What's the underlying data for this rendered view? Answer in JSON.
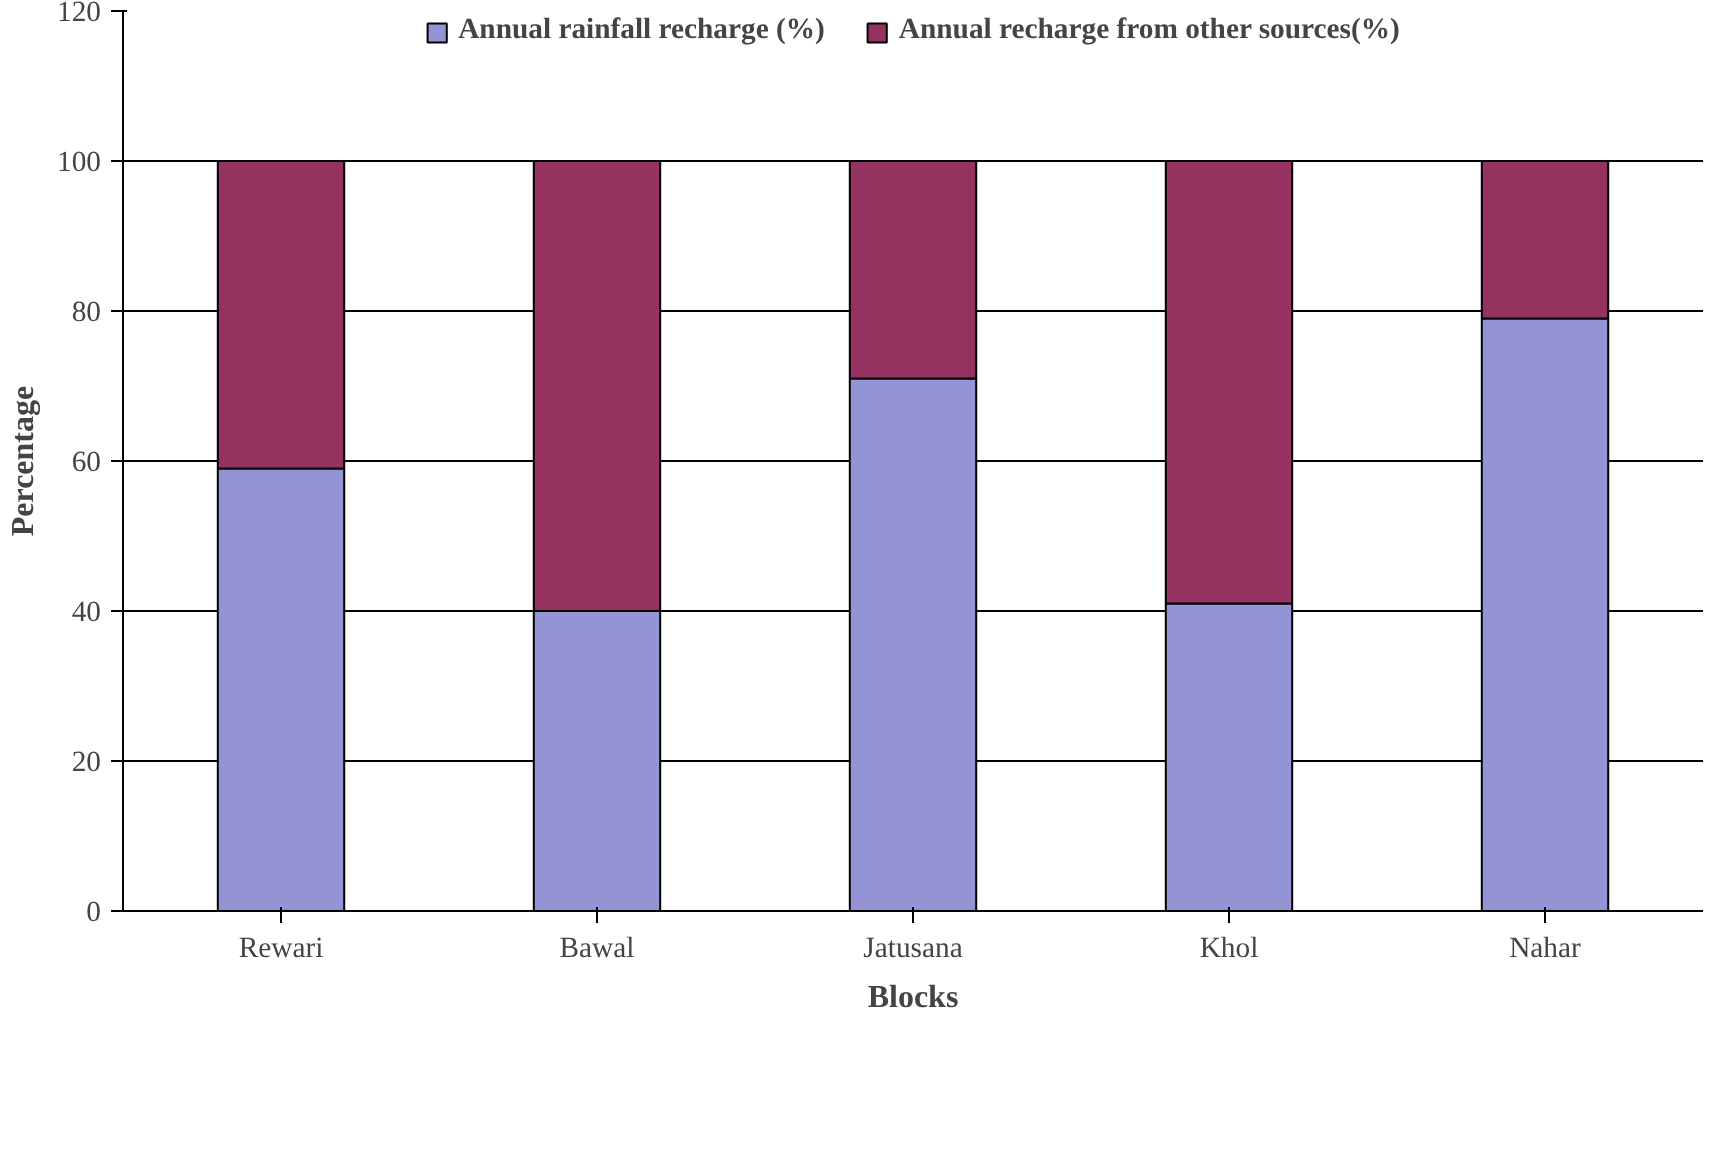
{
  "chart_data": {
    "type": "bar",
    "stacked": true,
    "xlabel": "Blocks",
    "ylabel": "Percentage",
    "categories": [
      "Rewari",
      "Bawal",
      "Jatusana",
      "Khol",
      "Nahar"
    ],
    "series": [
      {
        "name": "Annual rainfall recharge (%)",
        "color": "#9494d4",
        "values": [
          59,
          40,
          71,
          41,
          79
        ]
      },
      {
        "name": "Annual recharge from other sources(%)",
        "color": "#963260",
        "values": [
          41,
          60,
          29,
          59,
          21
        ]
      }
    ],
    "ylim": [
      0,
      120
    ],
    "yticks": [
      0,
      20,
      40,
      60,
      80,
      100,
      120
    ],
    "grid": "y",
    "legend": "top"
  }
}
